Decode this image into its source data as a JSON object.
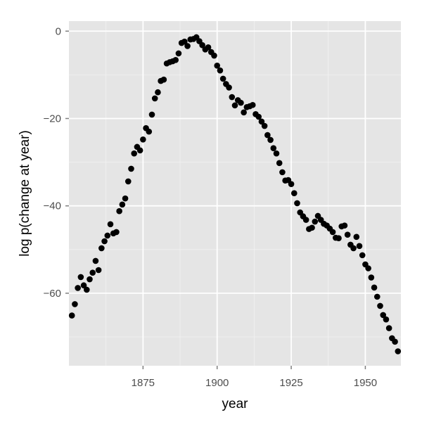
{
  "chart_data": {
    "type": "scatter",
    "xlabel": "year",
    "ylabel": "log p(change at year)",
    "xlim": [
      1850,
      1962
    ],
    "ylim": [
      -76.6,
      2.3
    ],
    "xticks": [
      1875,
      1900,
      1925,
      1950
    ],
    "xtick_labels": [
      "1875",
      "1900",
      "1925",
      "1950"
    ],
    "yticks": [
      0,
      -20,
      -40,
      -60
    ],
    "ytick_labels": [
      "0",
      "−20",
      "−40",
      "−60"
    ],
    "grid": true,
    "background": "#e5e5e5",
    "point_color": "#000000",
    "x": [
      1851,
      1852,
      1853,
      1854,
      1855,
      1856,
      1857,
      1858,
      1859,
      1860,
      1861,
      1862,
      1863,
      1864,
      1865,
      1866,
      1867,
      1868,
      1869,
      1870,
      1871,
      1872,
      1873,
      1874,
      1875,
      1876,
      1877,
      1878,
      1879,
      1880,
      1881,
      1882,
      1883,
      1884,
      1885,
      1886,
      1887,
      1888,
      1889,
      1890,
      1891,
      1892,
      1893,
      1894,
      1895,
      1896,
      1897,
      1898,
      1899,
      1900,
      1901,
      1902,
      1903,
      1904,
      1905,
      1906,
      1907,
      1908,
      1909,
      1910,
      1911,
      1912,
      1913,
      1914,
      1915,
      1916,
      1917,
      1918,
      1919,
      1920,
      1921,
      1922,
      1923,
      1924,
      1925,
      1926,
      1927,
      1928,
      1929,
      1930,
      1931,
      1932,
      1933,
      1934,
      1935,
      1936,
      1937,
      1938,
      1939,
      1940,
      1941,
      1942,
      1943,
      1944,
      1945,
      1946,
      1947,
      1948,
      1949,
      1950,
      1951,
      1952,
      1953,
      1954,
      1955,
      1956,
      1957,
      1958,
      1959,
      1960,
      1961
    ],
    "y": [
      -65.1,
      -62.5,
      -58.8,
      -56.3,
      -58.2,
      -59.2,
      -56.8,
      -55.3,
      -52.6,
      -54.7,
      -49.7,
      -48.1,
      -46.8,
      -44.2,
      -46.3,
      -46.0,
      -41.2,
      -39.7,
      -38.3,
      -34.4,
      -31.5,
      -28.0,
      -26.5,
      -27.3,
      -24.8,
      -22.2,
      -23.0,
      -19.1,
      -15.4,
      -14.0,
      -11.4,
      -11.1,
      -7.4,
      -7.1,
      -6.9,
      -6.6,
      -5.1,
      -2.7,
      -2.4,
      -3.4,
      -1.9,
      -1.8,
      -1.4,
      -2.3,
      -3.2,
      -4.2,
      -3.7,
      -4.8,
      -5.6,
      -7.9,
      -9.0,
      -10.9,
      -12.1,
      -12.9,
      -15.1,
      -17.0,
      -15.8,
      -16.4,
      -18.6,
      -17.4,
      -17.2,
      -16.9,
      -19.0,
      -19.6,
      -20.7,
      -21.7,
      -23.8,
      -24.9,
      -26.8,
      -28.0,
      -30.2,
      -32.3,
      -34.2,
      -34.1,
      -35.0,
      -37.1,
      -39.4,
      -41.5,
      -42.4,
      -43.2,
      -45.3,
      -45.0,
      -43.6,
      -42.3,
      -43.2,
      -44.1,
      -44.5,
      -45.2,
      -46.0,
      -47.3,
      -47.4,
      -44.7,
      -44.5,
      -46.6,
      -48.9,
      -49.7,
      -47.1,
      -49.2,
      -51.3,
      -53.4,
      -54.3,
      -56.4,
      -58.7,
      -60.8,
      -62.9,
      -65.0,
      -66.0,
      -68.0,
      -70.3,
      -71.1,
      -73.3
    ]
  }
}
